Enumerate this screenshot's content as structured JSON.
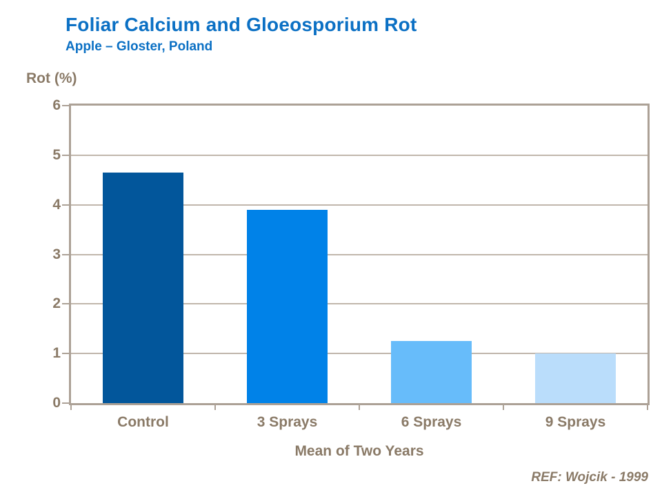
{
  "header": {
    "title": "Foliar Calcium and Gloeosporium Rot",
    "subtitle": "Apple – Gloster, Poland"
  },
  "chart_data": {
    "type": "bar",
    "title": "Foliar Calcium and Gloeosporium Rot",
    "subtitle": "Apple – Gloster, Poland",
    "categories": [
      "Control",
      "3 Sprays",
      "6 Sprays",
      "9 Sprays"
    ],
    "values": [
      4.65,
      3.9,
      1.25,
      1.0
    ],
    "bar_colors": [
      "#02569B",
      "#0082E8",
      "#67BCFA",
      "#BADDFB"
    ],
    "ylabel": "Rot (%)",
    "xlabel": "Mean of Two Years",
    "ylim": [
      0,
      6
    ],
    "yticks": [
      0,
      1,
      2,
      3,
      4,
      5,
      6
    ],
    "grid": true,
    "legend": "none"
  },
  "footer": {
    "reference": "REF: Wojcik - 1999"
  },
  "colors": {
    "title_blue": "#0B70C4",
    "label_brown": "#8A7A67",
    "axis_tan": "#ACA196",
    "grid_tan": "#C0B6AB",
    "background": "#FFFFFF"
  }
}
